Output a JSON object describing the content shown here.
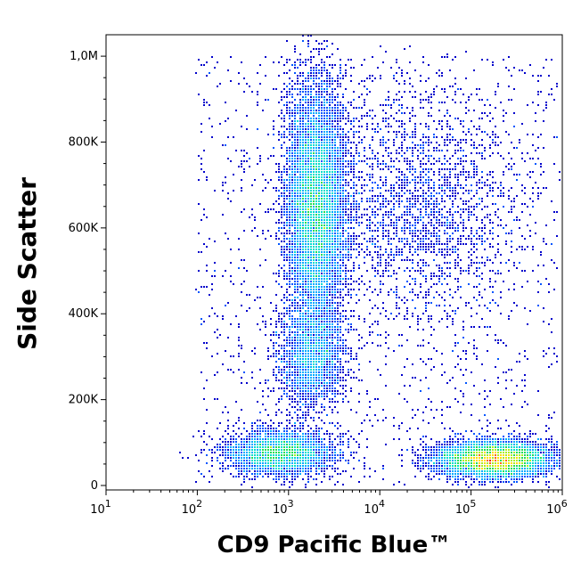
{
  "chart_data": {
    "type": "scatter",
    "title": "",
    "xlabel": "CD9 Pacific Blue™",
    "ylabel": "Side Scatter",
    "x_scale": "log",
    "xlim": [
      10,
      1000000
    ],
    "ylim": [
      0,
      1050000
    ],
    "x_ticks": [
      {
        "value": 10,
        "base": "10",
        "exp": "1"
      },
      {
        "value": 100,
        "base": "10",
        "exp": "2"
      },
      {
        "value": 1000,
        "base": "10",
        "exp": "3"
      },
      {
        "value": 10000,
        "base": "10",
        "exp": "4"
      },
      {
        "value": 100000,
        "base": "10",
        "exp": "5"
      },
      {
        "value": 1000000,
        "base": "10",
        "exp": "6"
      }
    ],
    "y_ticks": [
      {
        "value": 0,
        "label": "0"
      },
      {
        "value": 200000,
        "label": "200K"
      },
      {
        "value": 400000,
        "label": "400K"
      },
      {
        "value": 600000,
        "label": "600K"
      },
      {
        "value": 800000,
        "label": "800K"
      },
      {
        "value": 1000000,
        "label": "1,0M"
      }
    ],
    "grid": false,
    "legend": "none",
    "colormap": [
      "#0000cc",
      "#0055ff",
      "#00aaff",
      "#00ddcc",
      "#22dd55",
      "#aaee22",
      "#ffdd00",
      "#ff6600",
      "#ee0000"
    ],
    "populations": [
      {
        "x_median": 2000,
        "y_median": 650000,
        "x_spread_decades": 0.16,
        "y_spread": 140000,
        "count": 9000,
        "peak_density": 0.7
      },
      {
        "x_median": 1800,
        "y_median": 300000,
        "x_spread_decades": 0.18,
        "y_spread": 60000,
        "count": 2200,
        "peak_density": 0.35
      },
      {
        "x_median": 800,
        "y_median": 75000,
        "x_spread_decades": 0.28,
        "y_spread": 25000,
        "count": 3500,
        "peak_density": 0.55
      },
      {
        "x_median": 180000,
        "y_median": 60000,
        "x_spread_decades": 0.3,
        "y_spread": 20000,
        "count": 7000,
        "peak_density": 1.0
      },
      {
        "x_median": 25000,
        "y_median": 650000,
        "x_spread_decades": 0.55,
        "y_spread": 130000,
        "count": 2200,
        "peak_density": 0.1
      }
    ]
  }
}
